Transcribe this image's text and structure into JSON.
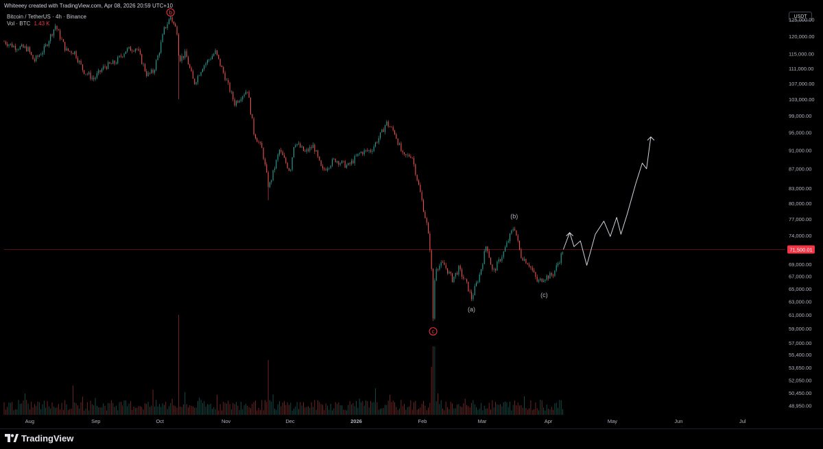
{
  "header": {
    "attribution": "Whiteeey created with TradingView.com, Apr 08, 2026 20:59 UTC+10"
  },
  "legend": {
    "symbol_line": "Bitcoin / TetherUS · 4h · Binance",
    "volume_label": "Vol · BTC",
    "volume_value": "1.43 K"
  },
  "price_scale": {
    "currency_button": "USDT",
    "current_price_label": "71,500.01",
    "current_price_color": "#f23645"
  },
  "brand": {
    "logo_text": "TradingView"
  },
  "colors": {
    "background": "#000000",
    "up_candle": "#26a69a",
    "down_candle": "#ef5350",
    "projection_line": "#d1d4dc",
    "wave_label_red": "#f23645",
    "wave_label_gray": "#b2b5be"
  },
  "chart_data": {
    "type": "candlestick",
    "title": "Bitcoin / TetherUS · 4h · Binance",
    "x_ticks": [
      {
        "label": "Aug",
        "date": "2025-08-01"
      },
      {
        "label": "Sep",
        "date": "2025-09-01"
      },
      {
        "label": "Oct",
        "date": "2025-10-01"
      },
      {
        "label": "Nov",
        "date": "2025-11-01"
      },
      {
        "label": "Dec",
        "date": "2025-12-01"
      },
      {
        "label": "2026",
        "date": "2026-01-01"
      },
      {
        "label": "Feb",
        "date": "2026-02-01"
      },
      {
        "label": "Mar",
        "date": "2026-03-01"
      },
      {
        "label": "Apr",
        "date": "2026-04-01"
      },
      {
        "label": "May",
        "date": "2026-05-01"
      },
      {
        "label": "Jun",
        "date": "2026-06-01"
      },
      {
        "label": "Jul",
        "date": "2026-07-01"
      }
    ],
    "y_ticks": [
      "125,000.00",
      "120,000.00",
      "115,000.00",
      "111,000.00",
      "107,000.00",
      "103,000.00",
      "99,000.00",
      "95,000.00",
      "91,000.00",
      "87,000.00",
      "83,000.00",
      "80,000.00",
      "77,000.00",
      "74,000.00",
      "69,000.00",
      "67,000.00",
      "65,000.00",
      "63,000.00",
      "61,000.00",
      "59,000.00",
      "57,000.00",
      "55,400.00",
      "53,650.00",
      "52,050.00",
      "50,450.00",
      "48,950.00"
    ],
    "y_scale": "log",
    "current_price": 71500.01,
    "price_path": [
      [
        "2025-07-20",
        118500
      ],
      [
        "2025-07-25",
        117000
      ],
      [
        "2025-07-31",
        116500
      ],
      [
        "2025-08-03",
        113000
      ],
      [
        "2025-08-08",
        116500
      ],
      [
        "2025-08-13",
        123200
      ],
      [
        "2025-08-18",
        116000
      ],
      [
        "2025-08-22",
        115500
      ],
      [
        "2025-08-26",
        110500
      ],
      [
        "2025-08-31",
        108200
      ],
      [
        "2025-09-05",
        111500
      ],
      [
        "2025-09-10",
        112500
      ],
      [
        "2025-09-15",
        116000
      ],
      [
        "2025-09-20",
        116800
      ],
      [
        "2025-09-25",
        109200
      ],
      [
        "2025-09-28",
        110200
      ],
      [
        "2025-10-01",
        116500
      ],
      [
        "2025-10-03",
        122000
      ],
      [
        "2025-10-06",
        125800
      ],
      [
        "2025-10-09",
        121500
      ],
      [
        "2025-10-10",
        113500
      ],
      [
        "2025-10-13",
        115000
      ],
      [
        "2025-10-17",
        107000
      ],
      [
        "2025-10-21",
        111500
      ],
      [
        "2025-10-27",
        115500
      ],
      [
        "2025-10-31",
        109500
      ],
      [
        "2025-11-05",
        102000
      ],
      [
        "2025-11-11",
        105500
      ],
      [
        "2025-11-14",
        95000
      ],
      [
        "2025-11-18",
        91000
      ],
      [
        "2025-11-21",
        83000
      ],
      [
        "2025-11-26",
        91000
      ],
      [
        "2025-12-01",
        86500
      ],
      [
        "2025-12-03",
        93000
      ],
      [
        "2025-12-08",
        90500
      ],
      [
        "2025-12-12",
        92000
      ],
      [
        "2025-12-16",
        86500
      ],
      [
        "2025-12-22",
        89000
      ],
      [
        "2025-12-28",
        87500
      ],
      [
        "2026-01-03",
        90500
      ],
      [
        "2026-01-08",
        91000
      ],
      [
        "2026-01-13",
        95000
      ],
      [
        "2026-01-15",
        97300
      ],
      [
        "2026-01-19",
        95000
      ],
      [
        "2026-01-23",
        89500
      ],
      [
        "2026-01-27",
        90000
      ],
      [
        "2026-01-31",
        82000
      ],
      [
        "2026-02-03",
        76000
      ],
      [
        "2026-02-05",
        70500
      ],
      [
        "2026-02-06",
        60500
      ],
      [
        "2026-02-07",
        68500
      ],
      [
        "2026-02-11",
        69000
      ],
      [
        "2026-02-15",
        66500
      ],
      [
        "2026-02-18",
        68200
      ],
      [
        "2026-02-22",
        65500
      ],
      [
        "2026-02-24",
        63500
      ],
      [
        "2026-02-28",
        67500
      ],
      [
        "2026-03-03",
        72500
      ],
      [
        "2026-03-06",
        67500
      ],
      [
        "2026-03-11",
        71000
      ],
      [
        "2026-03-16",
        75800
      ],
      [
        "2026-03-19",
        70500
      ],
      [
        "2026-03-23",
        69000
      ],
      [
        "2026-03-27",
        66000
      ],
      [
        "2026-03-30",
        66800
      ],
      [
        "2026-04-03",
        67200
      ],
      [
        "2026-04-06",
        69500
      ],
      [
        "2026-04-08",
        71500
      ]
    ],
    "projection_path": [
      [
        "2026-04-08",
        71500
      ],
      [
        "2026-04-11",
        74500
      ],
      [
        "2026-04-13",
        72000
      ],
      [
        "2026-04-16",
        73000
      ],
      [
        "2026-04-19",
        68800
      ],
      [
        "2026-04-23",
        74200
      ],
      [
        "2026-04-27",
        76600
      ],
      [
        "2026-04-30",
        73800
      ],
      [
        "2026-05-03",
        77300
      ],
      [
        "2026-05-05",
        74200
      ],
      [
        "2026-05-08",
        78000
      ],
      [
        "2026-05-12",
        84000
      ],
      [
        "2026-05-15",
        88200
      ],
      [
        "2026-05-17",
        87000
      ],
      [
        "2026-05-19",
        94000
      ]
    ],
    "wave_labels": [
      {
        "text": "b",
        "date": "2025-10-06",
        "price": 127200,
        "style": "circle"
      },
      {
        "text": "c",
        "date": "2026-02-06",
        "price": 58600,
        "style": "circle"
      },
      {
        "text": "(a)",
        "date": "2026-02-24",
        "price": 61800,
        "style": "plain"
      },
      {
        "text": "(b)",
        "date": "2026-03-16",
        "price": 77500,
        "style": "plain"
      },
      {
        "text": "(c)",
        "date": "2026-03-30",
        "price": 64000,
        "style": "plain"
      }
    ]
  }
}
